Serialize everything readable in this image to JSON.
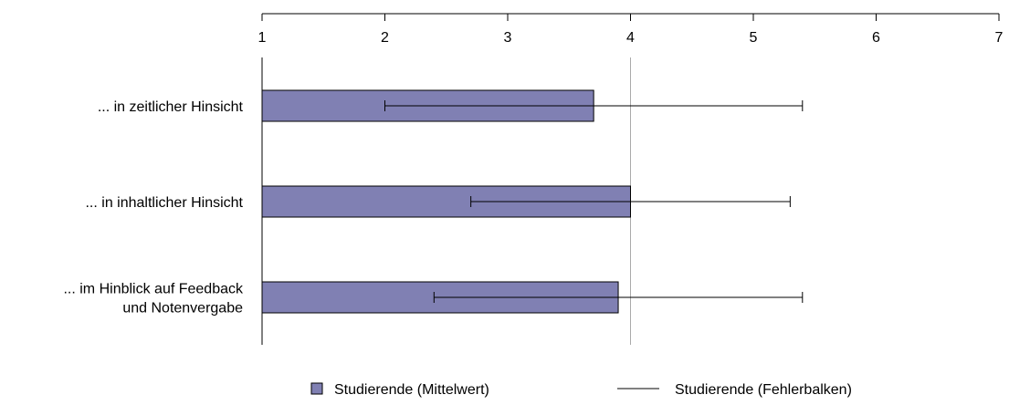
{
  "chart_data": {
    "type": "bar",
    "orientation": "horizontal",
    "title": "",
    "xlabel": "",
    "ylabel": "",
    "xlim": [
      1,
      7
    ],
    "xticks": [
      "1",
      "2",
      "3",
      "4",
      "5",
      "6",
      "7"
    ],
    "x_axis_position": "top",
    "reference_line": 4,
    "categories": [
      [
        "... in zeitlicher Hinsicht"
      ],
      [
        "... in inhaltlicher Hinsicht"
      ],
      [
        "... im Hinblick auf Feedback",
        "und Notenvergabe"
      ]
    ],
    "series": [
      {
        "name": "Studierende (Mittelwert)",
        "values": [
          3.7,
          4.0,
          3.9
        ],
        "color": "#8080b3"
      },
      {
        "name": "Studierende (Fehlerbalken)",
        "error_low": [
          2.0,
          2.7,
          2.4
        ],
        "error_high": [
          5.4,
          5.3,
          5.4
        ],
        "color": "#000000"
      }
    ],
    "legend_position": "bottom"
  }
}
